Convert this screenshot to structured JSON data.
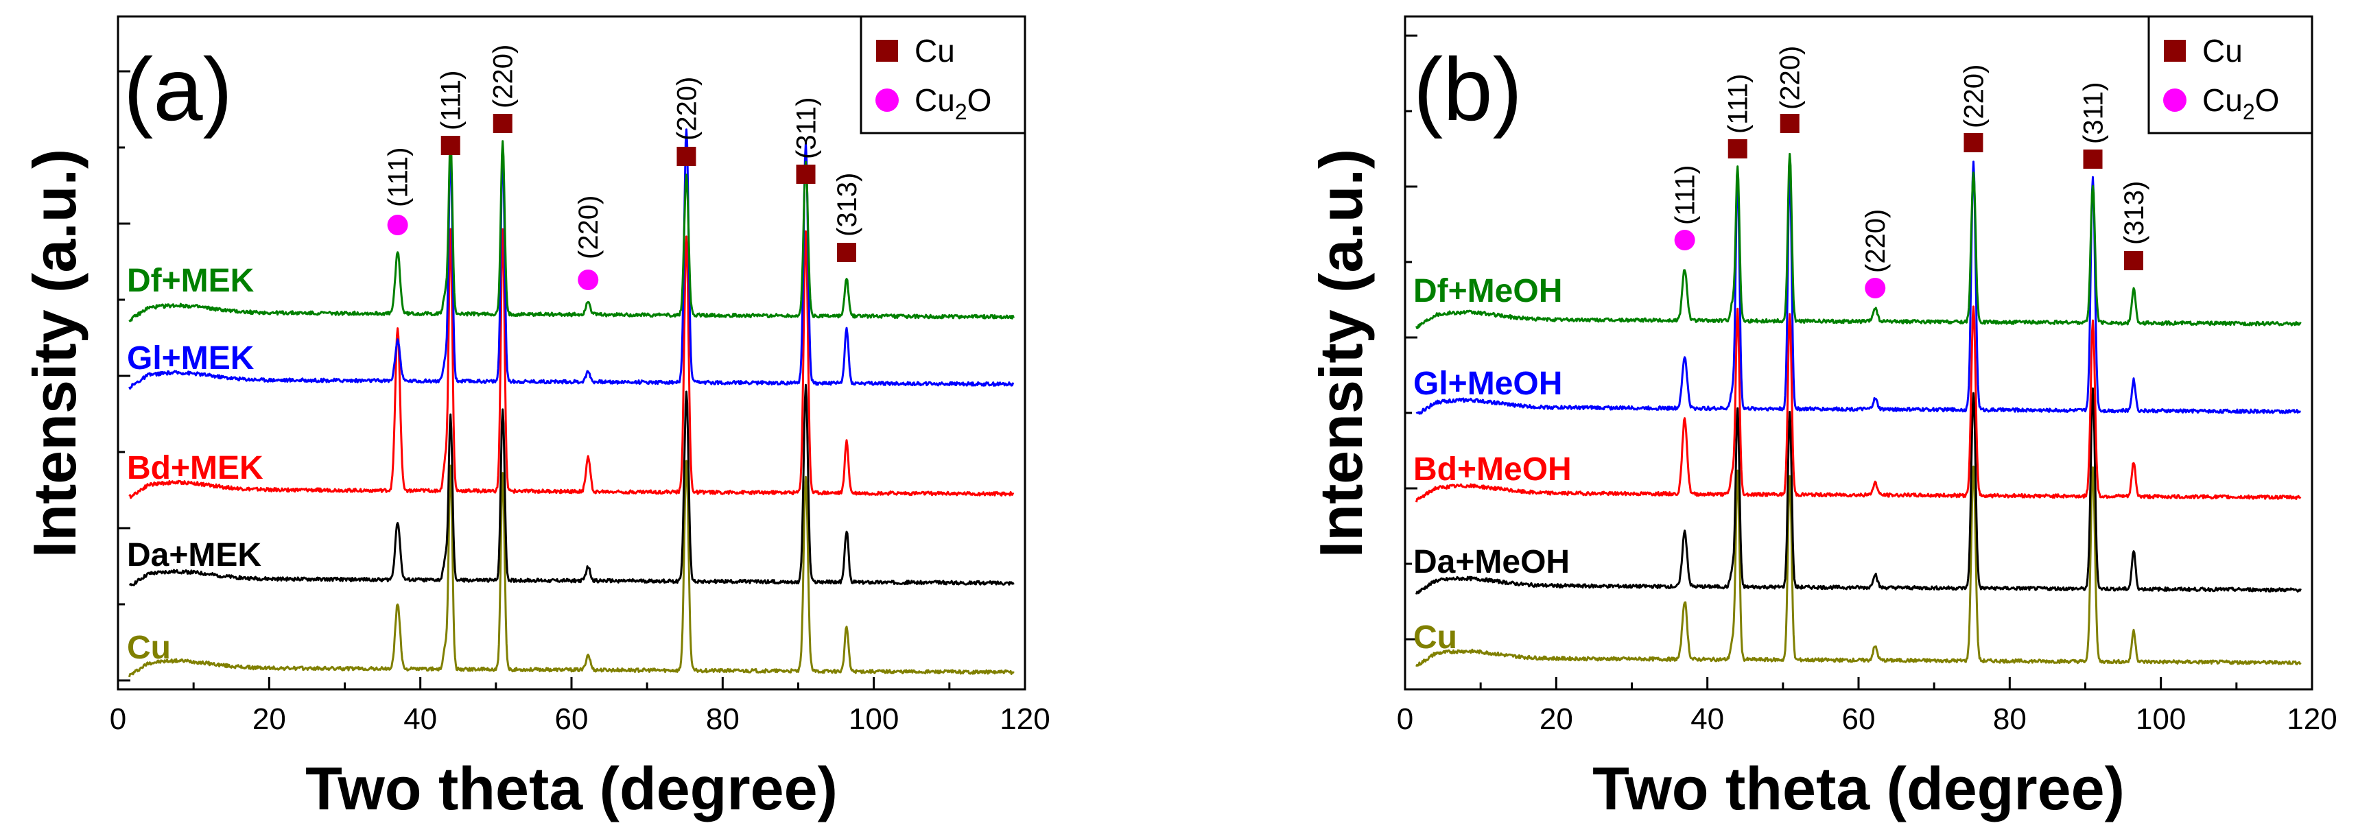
{
  "colors": {
    "Cu": "#808000",
    "Da": "#000000",
    "Bd": "#ff0000",
    "Gl": "#0000ff",
    "Df": "#008000",
    "cu_marker": "#8b0000",
    "cu2o_marker": "#ff00ff"
  },
  "chart_data": [
    {
      "type": "line",
      "panel_label": "(a)",
      "xlabel": "Two theta (degree)",
      "ylabel": "Intensity (a.u.)",
      "xlim": [
        0,
        120
      ],
      "xticks": [
        "0",
        "20",
        "40",
        "60",
        "80",
        "100",
        "120"
      ],
      "y_tick_labels_shown": false,
      "legend": {
        "position": "top-right",
        "entries": [
          {
            "symbol": "square",
            "text": "Cu",
            "sub": ""
          },
          {
            "symbol": "circle",
            "text": "Cu",
            "sub": "2",
            "suffix": "O"
          }
        ]
      },
      "peaks": [
        37,
        43.3,
        44,
        50.9,
        62.2,
        75.2,
        91,
        96.4
      ],
      "series": [
        {
          "name": "Cu",
          "color_key": "Cu",
          "heights": [
            95,
            30,
            295,
            285,
            22,
            305,
            285,
            65
          ]
        },
        {
          "name": "Da+MEK",
          "color_key": "Da",
          "heights": [
            85,
            30,
            240,
            250,
            20,
            275,
            285,
            75
          ]
        },
        {
          "name": "Bd+MEK",
          "color_key": "Bd",
          "heights": [
            235,
            45,
            380,
            380,
            50,
            375,
            380,
            75
          ]
        },
        {
          "name": "Gl+MEK",
          "color_key": "Gl",
          "heights": [
            60,
            30,
            340,
            335,
            15,
            370,
            350,
            80
          ]
        },
        {
          "name": "Df+MEK",
          "color_key": "Df",
          "heights": [
            90,
            30,
            255,
            250,
            20,
            205,
            225,
            55
          ]
        }
      ],
      "annotations": [
        {
          "label": "(111)",
          "x": 37,
          "marker": "circle"
        },
        {
          "label": "(111)",
          "x": 44,
          "marker": "square"
        },
        {
          "label": "(220)",
          "x": 50.9,
          "marker": "square"
        },
        {
          "label": "(220)",
          "x": 62.2,
          "marker": "circle"
        },
        {
          "label": "(220)",
          "x": 75.2,
          "marker": "square"
        },
        {
          "label": "(311)",
          "x": 91,
          "marker": "square"
        },
        {
          "label": "(313)",
          "x": 96.4,
          "marker": "square"
        }
      ]
    },
    {
      "type": "line",
      "panel_label": "(b)",
      "xlabel": "Two theta (degree)",
      "ylabel": "Intensity (a.u.)",
      "xlim": [
        0,
        120
      ],
      "xticks": [
        "0",
        "20",
        "40",
        "60",
        "80",
        "100",
        "120"
      ],
      "y_tick_labels_shown": false,
      "legend": {
        "position": "top-right",
        "entries": [
          {
            "symbol": "square",
            "text": "Cu",
            "sub": ""
          },
          {
            "symbol": "circle",
            "text": "Cu",
            "sub": "2",
            "suffix": "O"
          }
        ]
      },
      "peaks": [
        37,
        43.3,
        44,
        50.9,
        62.2,
        75.2,
        91,
        96.4
      ],
      "series": [
        {
          "name": "Cu",
          "color_key": "Cu",
          "heights": [
            85,
            25,
            275,
            270,
            20,
            285,
            285,
            45
          ]
        },
        {
          "name": "Da+MeOH",
          "color_key": "Da",
          "heights": [
            80,
            25,
            260,
            255,
            20,
            285,
            290,
            55
          ]
        },
        {
          "name": "Bd+MeOH",
          "color_key": "Bd",
          "heights": [
            110,
            30,
            270,
            265,
            18,
            275,
            255,
            50
          ]
        },
        {
          "name": "Gl+MeOH",
          "color_key": "Gl",
          "heights": [
            75,
            25,
            345,
            350,
            15,
            360,
            340,
            45
          ]
        },
        {
          "name": "Df+MeOH",
          "color_key": "Df",
          "heights": [
            75,
            25,
            225,
            245,
            20,
            220,
            200,
            50
          ]
        }
      ],
      "annotations": [
        {
          "label": "(111)",
          "x": 37,
          "marker": "circle"
        },
        {
          "label": "(111)",
          "x": 44,
          "marker": "square"
        },
        {
          "label": "(220)",
          "x": 50.9,
          "marker": "square"
        },
        {
          "label": "(220)",
          "x": 62.2,
          "marker": "circle"
        },
        {
          "label": "(220)",
          "x": 75.2,
          "marker": "square"
        },
        {
          "label": "(311)",
          "x": 91,
          "marker": "square"
        },
        {
          "label": "(313)",
          "x": 96.4,
          "marker": "square"
        }
      ]
    }
  ]
}
